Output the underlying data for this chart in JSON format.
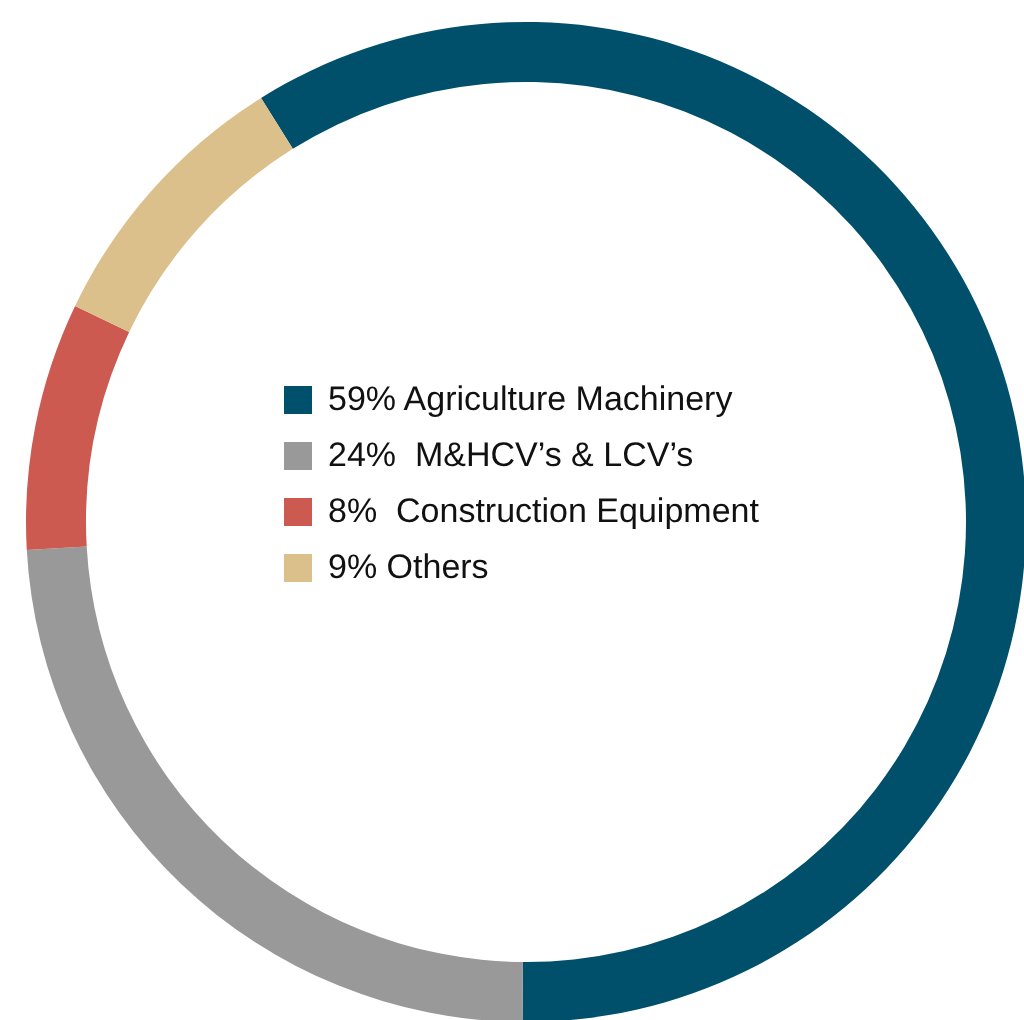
{
  "chart_data": {
    "type": "donut",
    "categories": [
      "Agriculture Machinery",
      "M&HCV’s & LCV’s",
      "Construction Equipment",
      "Others"
    ],
    "values": [
      59,
      24,
      8,
      9
    ],
    "value_labels": [
      "59%",
      "24% ",
      "8% ",
      "9%"
    ],
    "colors": [
      "#00506b",
      "#999999",
      "#cd5a50",
      "#dcc08c"
    ],
    "legend": "top left"
  }
}
